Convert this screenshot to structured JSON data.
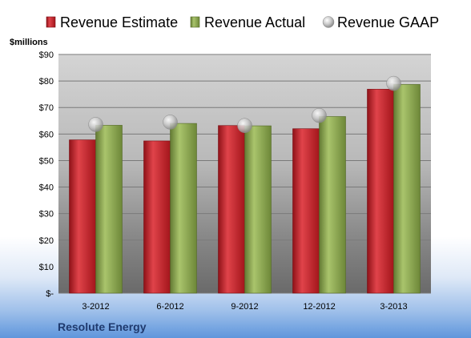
{
  "chart_data": {
    "type": "bar",
    "title": "",
    "ylabel": "$millions",
    "xlabel": "",
    "company": "Resolute Energy",
    "categories": [
      "3-2012",
      "6-2012",
      "9-2012",
      "12-2012",
      "3-2013"
    ],
    "ylim": [
      0,
      90
    ],
    "yticks": [
      0,
      10,
      20,
      30,
      40,
      50,
      60,
      70,
      80,
      90
    ],
    "ytick_labels": [
      "$-",
      "$10",
      "$20",
      "$30",
      "$40",
      "$50",
      "$60",
      "$70",
      "$80",
      "$90"
    ],
    "grid": true,
    "legend_position": "top",
    "series": [
      {
        "name": "Revenue Estimate",
        "type": "bar",
        "color": "#c0282e",
        "values": [
          57.8,
          57.4,
          63.2,
          62.0,
          76.9
        ]
      },
      {
        "name": "Revenue Actual",
        "type": "bar",
        "color": "#8aa84e",
        "values": [
          63.3,
          64.0,
          63.1,
          66.6,
          78.7
        ]
      },
      {
        "name": "Revenue GAAP",
        "type": "marker",
        "color": "#c8c8c8",
        "values": [
          63.6,
          64.5,
          63.2,
          67.0,
          79.1
        ]
      }
    ]
  }
}
